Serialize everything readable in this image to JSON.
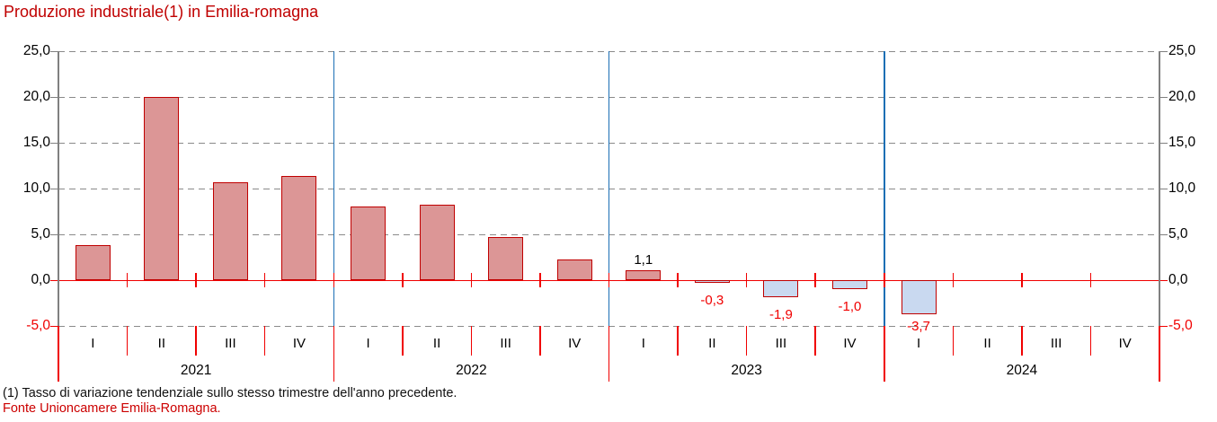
{
  "title": "Produzione industriale(1) in Emilia-romagna",
  "footnote": "(1) Tasso di variazione tendenziale sullo stesso trimestre dell'anno precedente.",
  "source": "Fonte Unioncamere Emilia-Romagna.",
  "colors": {
    "title_red": "#C00000",
    "source_red": "#CC0000",
    "positive_bar_fill": "#DC9696",
    "negative_bar_fill": "#C9D9F0",
    "bar_border": "#C00000",
    "axis_red": "#F00000",
    "negative_label_red": "#F00000",
    "positive_label_black": "#000000",
    "year_separator_blue": "#1B6FB5",
    "grid_gray": "#8A8A8A",
    "axis_gray": "#808080"
  },
  "chart_data": {
    "type": "bar",
    "title": "Produzione industriale(1) in Emilia-romagna",
    "ylabel": "",
    "xlabel": "",
    "ylim": [
      -5,
      25
    ],
    "grid": "horizontal dashed",
    "legend": "none",
    "yticks": [
      {
        "v": 25,
        "label": "25,0",
        "color": "black"
      },
      {
        "v": 20,
        "label": "20,0",
        "color": "black"
      },
      {
        "v": 15,
        "label": "15,0",
        "color": "black"
      },
      {
        "v": 10,
        "label": "10,0",
        "color": "black"
      },
      {
        "v": 5,
        "label": "5,0",
        "color": "black"
      },
      {
        "v": 0,
        "label": "0,0",
        "color": "black"
      },
      {
        "v": -5,
        "label": "-5,0",
        "color": "red"
      }
    ],
    "years": [
      {
        "year": "2021",
        "quarters": [
          "I",
          "II",
          "III",
          "IV"
        ],
        "values": [
          3.8,
          20.0,
          10.7,
          11.4
        ],
        "labels": [
          null,
          null,
          null,
          null
        ]
      },
      {
        "year": "2022",
        "quarters": [
          "I",
          "II",
          "III",
          "IV"
        ],
        "values": [
          8.0,
          8.2,
          4.7,
          2.3
        ],
        "labels": [
          null,
          null,
          null,
          null
        ]
      },
      {
        "year": "2023",
        "quarters": [
          "I",
          "II",
          "III",
          "IV"
        ],
        "values": [
          1.1,
          -0.3,
          -1.9,
          -1.0
        ],
        "labels": [
          "1,1",
          "-0,3",
          "-1,9",
          "-1,0"
        ]
      },
      {
        "year": "2024",
        "quarters": [
          "I",
          "II",
          "III",
          "IV"
        ],
        "values": [
          -3.7,
          null,
          null,
          null
        ],
        "labels": [
          "-3,7",
          null,
          null,
          null
        ]
      }
    ]
  }
}
